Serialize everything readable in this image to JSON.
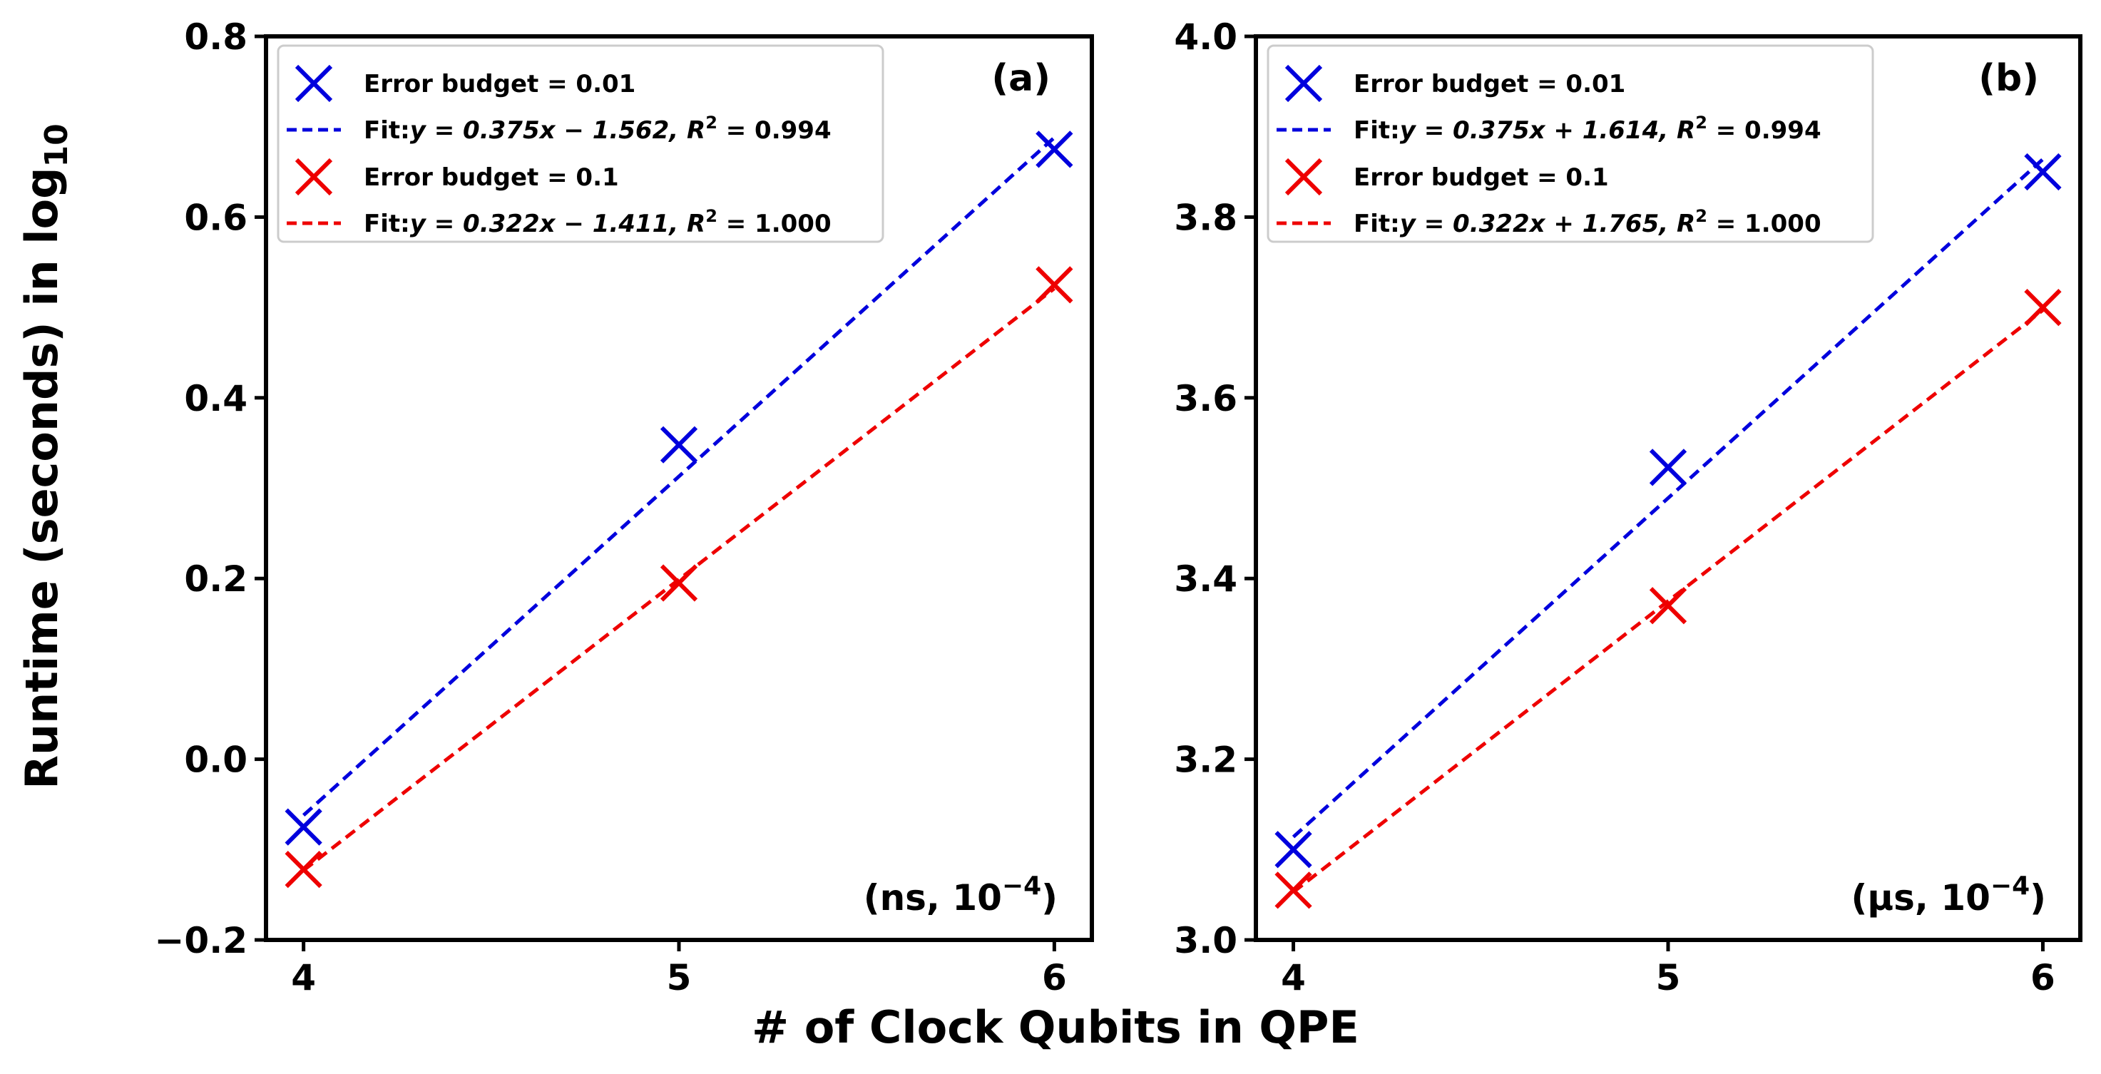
{
  "figure": {
    "xlabel": "# of Clock Qubits in QPE",
    "ylabel_main": "Runtime (seconds) in log",
    "ylabel_sub": "10"
  },
  "colors": {
    "series1": "#0000dd",
    "series2": "#ee0000",
    "axis": "#000000",
    "background": "#ffffff"
  },
  "chart_data": [
    {
      "type": "scatter",
      "panel_label": "(a)",
      "note_main": "(ns, 10",
      "note_exp": "−4",
      "note_end": ")",
      "x": [
        4,
        5,
        6
      ],
      "xlim": [
        3.9,
        6.1
      ],
      "ylim": [
        -0.2,
        0.8
      ],
      "xticks": [
        4,
        5,
        6
      ],
      "xtick_labels": [
        "4",
        "5",
        "6"
      ],
      "yticks": [
        -0.2,
        0.0,
        0.2,
        0.4,
        0.6,
        0.8
      ],
      "ytick_labels": [
        "−0.2",
        "0.0",
        "0.2",
        "0.4",
        "0.6",
        "0.8"
      ],
      "grid": false,
      "legend_position": "top-left",
      "series": [
        {
          "name": "Error budget = 0.01",
          "color": "#0000dd",
          "marker": "x",
          "y": [
            -0.075,
            0.348,
            0.675
          ],
          "fit": {
            "slope": 0.375,
            "intercept": -1.562,
            "label_prefix": "Fit:",
            "eq": "y = 0.375x − 1.562, R",
            "r2_exp": "2",
            "r2_val": " = 0.994"
          }
        },
        {
          "name": "Error budget = 0.1",
          "color": "#ee0000",
          "marker": "x",
          "y": [
            -0.122,
            0.195,
            0.525
          ],
          "fit": {
            "slope": 0.322,
            "intercept": -1.411,
            "label_prefix": "Fit:",
            "eq": "y = 0.322x − 1.411, R",
            "r2_exp": "2",
            "r2_val": " = 1.000"
          }
        }
      ]
    },
    {
      "type": "scatter",
      "panel_label": "(b)",
      "note_main": "(μs, 10",
      "note_exp": "−4",
      "note_end": ")",
      "x": [
        4,
        5,
        6
      ],
      "xlim": [
        3.9,
        6.1
      ],
      "ylim": [
        3.0,
        4.0
      ],
      "xticks": [
        4,
        5,
        6
      ],
      "xtick_labels": [
        "4",
        "5",
        "6"
      ],
      "yticks": [
        3.0,
        3.2,
        3.4,
        3.6,
        3.8,
        4.0
      ],
      "ytick_labels": [
        "3.0",
        "3.2",
        "3.4",
        "3.6",
        "3.8",
        "4.0"
      ],
      "grid": false,
      "legend_position": "top-left",
      "series": [
        {
          "name": "Error budget = 0.01",
          "color": "#0000dd",
          "marker": "x",
          "y": [
            3.1,
            3.523,
            3.85
          ],
          "fit": {
            "slope": 0.375,
            "intercept": 1.614,
            "label_prefix": "Fit:",
            "eq": "y = 0.375x + 1.614, R",
            "r2_exp": "2",
            "r2_val": " = 0.994"
          }
        },
        {
          "name": "Error budget = 0.1",
          "color": "#ee0000",
          "marker": "x",
          "y": [
            3.055,
            3.37,
            3.7
          ],
          "fit": {
            "slope": 0.322,
            "intercept": 1.765,
            "label_prefix": "Fit:",
            "eq": "y = 0.322x + 1.765, R",
            "r2_exp": "2",
            "r2_val": " = 1.000"
          }
        }
      ]
    }
  ]
}
